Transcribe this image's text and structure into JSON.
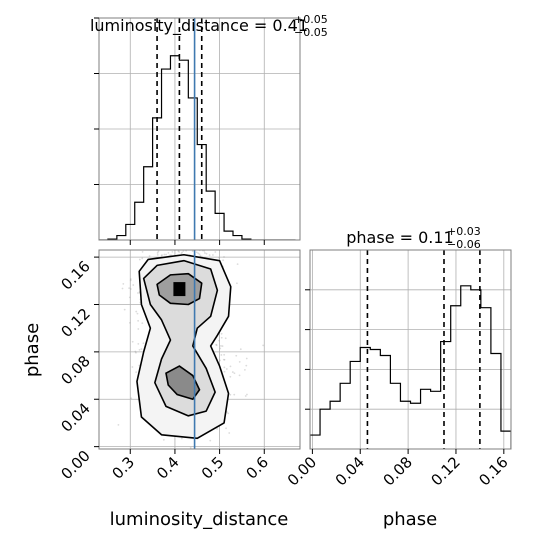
{
  "chart_data": [
    {
      "type": "histogram",
      "panel": "top-left",
      "title": "luminosity_distance",
      "title_value": "0.41",
      "title_upper": "+0.05",
      "title_lower": "−0.05",
      "xlim": [
        0.23,
        0.68
      ],
      "x_ticks": [
        0.3,
        0.4,
        0.5,
        0.6
      ],
      "y_ticks": [
        0.25,
        0.5,
        0.75,
        1.0
      ],
      "ylim": [
        0,
        1.0
      ],
      "bin_edges": [
        0.23,
        0.25,
        0.27,
        0.29,
        0.31,
        0.33,
        0.35,
        0.37,
        0.39,
        0.41,
        0.43,
        0.45,
        0.47,
        0.49,
        0.51,
        0.53,
        0.55,
        0.57,
        0.59,
        0.61,
        0.63,
        0.65,
        0.67
      ],
      "counts": [
        0,
        0.004,
        0.02,
        0.07,
        0.17,
        0.33,
        0.55,
        0.77,
        0.83,
        0.81,
        0.64,
        0.43,
        0.22,
        0.12,
        0.04,
        0.02,
        0.004,
        0,
        0,
        0,
        0,
        0
      ],
      "quantiles": [
        0.36,
        0.41,
        0.46
      ],
      "truth": 0.444
    },
    {
      "type": "histogram",
      "panel": "bottom-right",
      "title": "phase",
      "title_value": "0.11",
      "title_upper": "+0.03",
      "title_lower": "−0.06",
      "xlim": [
        -0.002,
        0.166
      ],
      "x_ticks": [
        0.0,
        0.04,
        0.08,
        0.12,
        0.16
      ],
      "x_tick_labels": [
        "0.00",
        "0.04",
        "0.08",
        "0.12",
        "0.16"
      ],
      "y_ticks": [
        0.2,
        0.4,
        0.6,
        0.8
      ],
      "ylim": [
        0,
        1.0
      ],
      "bin_edges": [
        -0.002,
        0.0064,
        0.0148,
        0.0232,
        0.0316,
        0.04,
        0.0484,
        0.0568,
        0.0652,
        0.0736,
        0.082,
        0.0904,
        0.0988,
        0.1072,
        0.1156,
        0.124,
        0.1324,
        0.1408,
        0.1492,
        0.1576,
        0.166
      ],
      "counts": [
        0.07,
        0.2,
        0.24,
        0.33,
        0.44,
        0.51,
        0.5,
        0.47,
        0.33,
        0.24,
        0.23,
        0.3,
        0.29,
        0.54,
        0.72,
        0.82,
        0.8,
        0.71,
        0.48,
        0.09
      ],
      "quantiles": [
        0.046,
        0.11,
        0.14
      ]
    },
    {
      "type": "scatter-density",
      "panel": "bottom-left",
      "xlabel": "luminosity_distance",
      "ylabel": "phase",
      "xlim": [
        0.23,
        0.68
      ],
      "ylim": [
        -0.002,
        0.166
      ],
      "x_ticks": [
        0.3,
        0.4,
        0.5,
        0.6
      ],
      "y_ticks": [
        0.0,
        0.04,
        0.08,
        0.12,
        0.16
      ],
      "y_tick_labels": [
        "0.00",
        "0.04",
        "0.08",
        "0.12",
        "0.16"
      ],
      "density_modes": [
        {
          "x": 0.41,
          "y": 0.133,
          "sx": 0.04,
          "sy": 0.015,
          "w": 1.0
        },
        {
          "x": 0.42,
          "y": 0.055,
          "sx": 0.045,
          "sy": 0.015,
          "w": 0.55
        }
      ],
      "contours": [
        [
          [
            0.36,
            0.137
          ],
          [
            0.39,
            0.145
          ],
          [
            0.43,
            0.146
          ],
          [
            0.46,
            0.138
          ],
          [
            0.455,
            0.125
          ],
          [
            0.43,
            0.12
          ],
          [
            0.39,
            0.121
          ],
          [
            0.365,
            0.128
          ]
        ],
        [
          [
            0.33,
            0.142
          ],
          [
            0.36,
            0.153
          ],
          [
            0.42,
            0.157
          ],
          [
            0.48,
            0.15
          ],
          [
            0.495,
            0.132
          ],
          [
            0.48,
            0.11
          ],
          [
            0.45,
            0.1
          ],
          [
            0.44,
            0.085
          ],
          [
            0.47,
            0.066
          ],
          [
            0.49,
            0.046
          ],
          [
            0.47,
            0.03
          ],
          [
            0.43,
            0.026
          ],
          [
            0.38,
            0.034
          ],
          [
            0.355,
            0.054
          ],
          [
            0.37,
            0.074
          ],
          [
            0.39,
            0.09
          ],
          [
            0.37,
            0.107
          ],
          [
            0.345,
            0.12
          ]
        ],
        [
          [
            0.32,
            0.148
          ],
          [
            0.34,
            0.158
          ],
          [
            0.42,
            0.162
          ],
          [
            0.5,
            0.157
          ],
          [
            0.525,
            0.135
          ],
          [
            0.52,
            0.11
          ],
          [
            0.495,
            0.094
          ],
          [
            0.48,
            0.085
          ],
          [
            0.5,
            0.068
          ],
          [
            0.52,
            0.045
          ],
          [
            0.51,
            0.02
          ],
          [
            0.45,
            0.007
          ],
          [
            0.37,
            0.01
          ],
          [
            0.325,
            0.025
          ],
          [
            0.315,
            0.055
          ],
          [
            0.33,
            0.08
          ],
          [
            0.345,
            0.1
          ],
          [
            0.325,
            0.12
          ]
        ]
      ],
      "inner_contour": [
        [
          0.38,
          0.062
        ],
        [
          0.41,
          0.068
        ],
        [
          0.44,
          0.06
        ],
        [
          0.455,
          0.048
        ],
        [
          0.44,
          0.04
        ],
        [
          0.405,
          0.044
        ],
        [
          0.385,
          0.052
        ]
      ],
      "truth_x": 0.444
    }
  ]
}
